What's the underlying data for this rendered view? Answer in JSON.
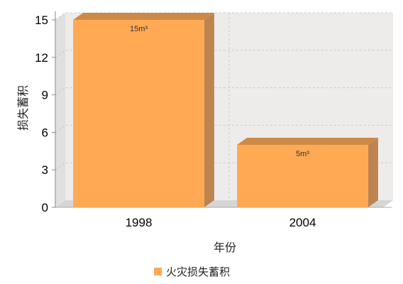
{
  "chart_data": {
    "type": "bar",
    "categories": [
      "1998",
      "2004"
    ],
    "series": [
      {
        "name": "火灾损失蓄积",
        "values": [
          15,
          5
        ],
        "data_labels": [
          "15m³",
          "5m³"
        ]
      }
    ],
    "xlabel": "年份",
    "ylabel": "损失蓄积",
    "ylim": [
      0,
      15
    ],
    "yticks": [
      0,
      3,
      6,
      9,
      12,
      15
    ],
    "grid": true,
    "legend_position": "bottom",
    "colors": {
      "bar_front": "#FFA955",
      "bar_side": "#BE8450",
      "bar_top": "#CC8A47",
      "plot_back": "#EEEBEB",
      "plot_floor": "#D6D6D6",
      "grid": "#C9C9C9"
    }
  }
}
